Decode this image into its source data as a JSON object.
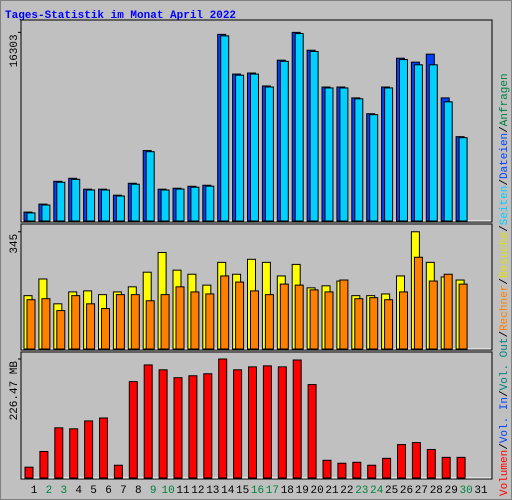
{
  "chart_data": [
    {
      "type": "bar",
      "title": "Tages-Statistik im Monat April 2022",
      "categories": [
        "1",
        "2",
        "3",
        "4",
        "5",
        "6",
        "7",
        "8",
        "9",
        "10",
        "11",
        "12",
        "13",
        "14",
        "15",
        "16",
        "17",
        "18",
        "19",
        "20",
        "21",
        "22",
        "23",
        "24",
        "25",
        "26",
        "27",
        "28",
        "29",
        "30",
        "31"
      ],
      "category_colors": [
        "#000000",
        "#008040",
        "#008040",
        "#000000",
        "#000000",
        "#000000",
        "#000000",
        "#000000",
        "#008040",
        "#008040",
        "#000000",
        "#000000",
        "#000000",
        "#000000",
        "#000000",
        "#008040",
        "#008040",
        "#000000",
        "#000000",
        "#000000",
        "#000000",
        "#000000",
        "#008040",
        "#008040",
        "#000000",
        "#000000",
        "#000000",
        "#000000",
        "#000000",
        "#008040",
        "#000000"
      ],
      "ylim": [
        0,
        17200
      ],
      "yticks": [
        16303
      ],
      "series": [
        {
          "color": "#0040ff",
          "values": [
            770,
            1460,
            3430,
            3690,
            2750,
            2750,
            2230,
            3260,
            6090,
            2750,
            2830,
            3000,
            3090,
            16130,
            12700,
            12790,
            11670,
            13900,
            16303,
            14760,
            11580,
            11580,
            10640,
            9270,
            11580,
            14070,
            13730,
            14420,
            10640,
            7290,
            null
          ]
        },
        {
          "color": "#00d0ff",
          "values": [
            700,
            1380,
            3350,
            3600,
            2680,
            2680,
            2160,
            3180,
            5990,
            2680,
            2760,
            2920,
            3010,
            16000,
            12600,
            12700,
            11580,
            13800,
            16200,
            14650,
            11500,
            11500,
            10560,
            9190,
            11500,
            13950,
            13500,
            13500,
            10300,
            7200,
            null
          ]
        }
      ]
    },
    {
      "type": "bar",
      "ylim": [
        0,
        362
      ],
      "yticks": [
        345
      ],
      "series": [
        {
          "color": "#ffff00",
          "values": [
            157,
            206,
            133,
            168,
            171,
            160,
            168,
            183,
            226,
            284,
            232,
            220,
            188,
            255,
            220,
            264,
            255,
            215,
            249,
            180,
            186,
            200,
            157,
            157,
            162,
            215,
            345,
            255,
            212,
            203,
            null
          ]
        },
        {
          "color": "#ff8000",
          "values": [
            145,
            148,
            113,
            157,
            133,
            119,
            160,
            160,
            142,
            160,
            183,
            168,
            162,
            215,
            197,
            171,
            160,
            191,
            188,
            174,
            168,
            203,
            148,
            151,
            145,
            168,
            270,
            200,
            220,
            191,
            null
          ]
        }
      ]
    },
    {
      "type": "bar",
      "ylim": [
        0,
        236
      ],
      "yticks": [
        {
          "value": 226.47,
          "label": "226.47 MB"
        }
      ],
      "series": [
        {
          "color": "#ff0000",
          "values": [
            20.6,
            50.5,
            95.5,
            93.6,
            108.6,
            114.2,
            24.3,
            183.4,
            215.2,
            205.9,
            190.9,
            194.6,
            198.4,
            226.47,
            205.9,
            211.5,
            213.4,
            211.5,
            224.6,
            177.8,
            33.7,
            28.1,
            29.9,
            24.3,
            37.4,
            63.6,
            67.4,
            54.3,
            39.3,
            39.3,
            null
          ]
        }
      ]
    }
  ],
  "legend": {
    "separator": "/",
    "items": [
      {
        "label": "Volumen",
        "color": "#ff0000"
      },
      {
        "label": "Vol. In",
        "color": "#0040ff"
      },
      {
        "label": "Vol. Out",
        "color": "#008080"
      },
      {
        "label": "Rechner",
        "color": "#ff8000"
      },
      {
        "label": "Besuche",
        "color": "#e0e000"
      },
      {
        "label": "Seiten",
        "color": "#00d0ff"
      },
      {
        "label": "Dateien",
        "color": "#0040ff"
      },
      {
        "label": "Anfragen",
        "color": "#008040"
      }
    ]
  }
}
